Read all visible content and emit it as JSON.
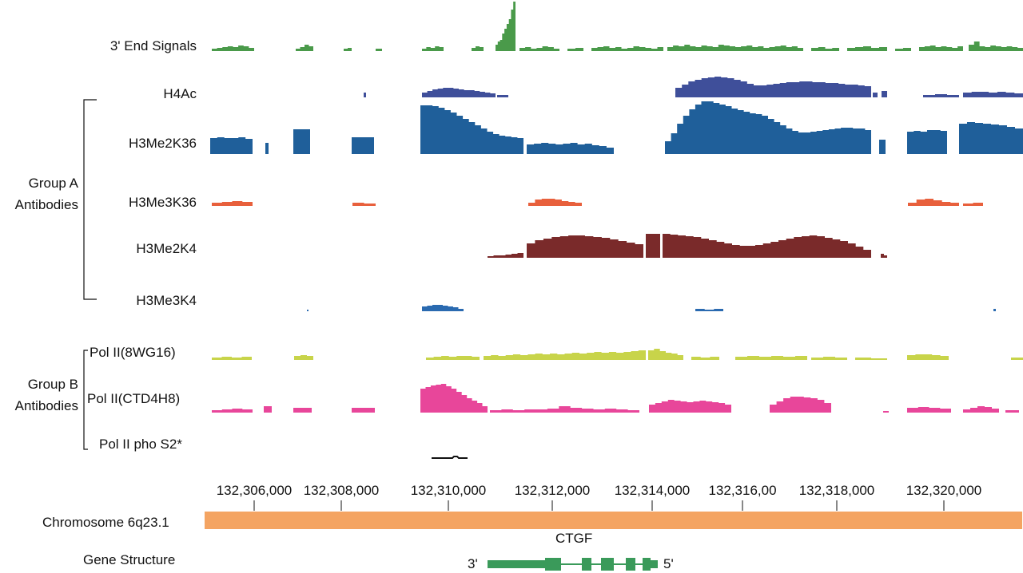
{
  "tracks": [
    {
      "id": "end3",
      "label": "3' End Signals",
      "color": "#4a9a4a"
    },
    {
      "id": "h4ac",
      "label": "H4Ac",
      "color": "#3f4f9a"
    },
    {
      "id": "h3me2k36",
      "label": "H3Me2K36",
      "color": "#1f5f9a"
    },
    {
      "id": "h3me3k36",
      "label": "H3Me3K36",
      "color": "#e8603c"
    },
    {
      "id": "h3me2k4",
      "label": "H3Me2K4",
      "color": "#7a2a2a"
    },
    {
      "id": "h3me3k4",
      "label": "H3Me3K4",
      "color": "#2a6ab0"
    },
    {
      "id": "pol8wg16",
      "label": "Pol II(8WG16)",
      "color": "#c8d44a"
    },
    {
      "id": "polctd",
      "label": "Pol II(CTD4H8)",
      "color": "#e8469a"
    },
    {
      "id": "polpho",
      "label": "Pol II pho S2*",
      "color": "#111111"
    }
  ],
  "groups": [
    {
      "id": "a",
      "line1": "Group A",
      "line2": "Antibodies"
    },
    {
      "id": "b",
      "line1": "Group B",
      "line2": "Antibodies"
    }
  ],
  "axis": {
    "ticks": [
      "132,306,000",
      "132,308,000",
      "132,310,000",
      "132,312,000",
      "132,314,000",
      "132,316,00",
      "132,318,000",
      "132,320,000"
    ]
  },
  "chromosome": {
    "label": "Chromosome 6q23.1",
    "color": "#f4a462"
  },
  "gene": {
    "label": "Gene Structure",
    "name": "CTGF",
    "left_end": "3'",
    "right_end": "5'",
    "color": "#3a9a5a"
  }
}
